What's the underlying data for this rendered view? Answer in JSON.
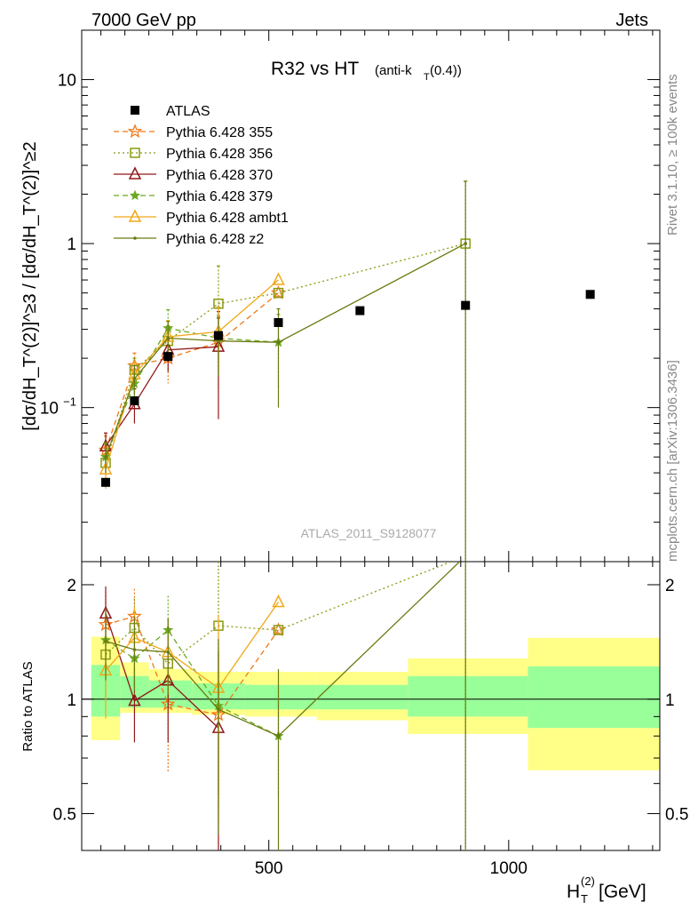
{
  "header": {
    "left": "7000 GeV pp",
    "right": "Jets"
  },
  "side_text": {
    "rivet": "Rivet 3.1.10, ≥ 100k events",
    "source": "mcplots.cern.ch [arXiv:1306.3436]"
  },
  "chart_data": {
    "type": "line",
    "title": "R32 vs HT",
    "title_suffix": "(anti-k",
    "title_suffix_sub": "T",
    "title_suffix_end": "(0.4))",
    "analysis_label": "ATLAS_2011_S9128077",
    "xlabel": "H",
    "xlabel_sub": "T",
    "xlabel_sup": "(2)",
    "xlabel_unit": " [GeV]",
    "ylabel": "[dσ/dH_T^(2)]^≥3 / [dσ/dH_T^(2)]^≥2",
    "ratio_ylabel": "Ratio to ATLAS",
    "x_range": [
      110,
      1315
    ],
    "y_range": [
      0.0115,
      20
    ],
    "y_scale": "log",
    "ratio_range": [
      0.4,
      2.3
    ],
    "ratio_scale": "log",
    "x_ticks": [
      {
        "v": 500,
        "label": "500"
      },
      {
        "v": 1000,
        "label": "1000"
      }
    ],
    "y_ticks": [
      {
        "v": 0.1,
        "label": "10",
        "sup": "−1"
      },
      {
        "v": 1,
        "label": "1",
        "sup": ""
      },
      {
        "v": 10,
        "label": "10",
        "sup": ""
      }
    ],
    "ratio_ticks": [
      {
        "v": 0.5,
        "label": "0.5"
      },
      {
        "v": 1,
        "label": "1"
      },
      {
        "v": 2,
        "label": "2"
      }
    ],
    "data": {
      "name": "ATLAS",
      "x": [
        160,
        220,
        290,
        395,
        520,
        690,
        910,
        1170
      ],
      "y": [
        0.035,
        0.11,
        0.205,
        0.275,
        0.33,
        0.39,
        0.42,
        0.49
      ]
    },
    "bands": [
      {
        "x0": 130,
        "x1": 190,
        "lo": 0.78,
        "hi": 1.46,
        "lo2": 0.9,
        "hi2": 1.23
      },
      {
        "x0": 190,
        "x1": 250,
        "lo": 0.92,
        "hi": 1.25,
        "lo2": 0.95,
        "hi2": 1.15
      },
      {
        "x0": 250,
        "x1": 340,
        "lo": 0.92,
        "hi": 1.2,
        "lo2": 0.95,
        "hi2": 1.12
      },
      {
        "x0": 340,
        "x1": 450,
        "lo": 0.91,
        "hi": 1.18,
        "lo2": 0.94,
        "hi2": 1.1
      },
      {
        "x0": 450,
        "x1": 600,
        "lo": 0.9,
        "hi": 1.18,
        "lo2": 0.94,
        "hi2": 1.09
      },
      {
        "x0": 600,
        "x1": 790,
        "lo": 0.88,
        "hi": 1.18,
        "lo2": 0.94,
        "hi2": 1.09
      },
      {
        "x0": 790,
        "x1": 1040,
        "lo": 0.81,
        "hi": 1.28,
        "lo2": 0.9,
        "hi2": 1.15
      },
      {
        "x0": 1040,
        "x1": 1315,
        "lo": 0.65,
        "hi": 1.45,
        "lo2": 0.84,
        "hi2": 1.22
      }
    ],
    "series": [
      {
        "name": "Pythia 6.428 355",
        "color": "#f07818",
        "dash": "6,4",
        "marker": "star-open",
        "x": [
          160,
          220,
          290,
          395,
          520
        ],
        "y": [
          0.055,
          0.18,
          0.2,
          0.25,
          0.5
        ],
        "err": [
          0.012,
          0.035,
          0.06,
          0.1,
          0.0
        ],
        "ratio": [
          1.57,
          1.65,
          0.97,
          0.91,
          1.52
        ],
        "rerr": [
          0.35,
          0.3,
          0.33,
          0.4,
          0.0
        ]
      },
      {
        "name": "Pythia 6.428 356",
        "color": "#8a9a10",
        "dash": "2,3",
        "marker": "square-open",
        "x": [
          160,
          220,
          290,
          395,
          520,
          910
        ],
        "y": [
          0.046,
          0.17,
          0.255,
          0.43,
          0.5,
          1.0
        ],
        "err": [
          0.01,
          0.03,
          0.06,
          0.3,
          0.0,
          1.4
        ],
        "ratio": [
          1.31,
          1.54,
          1.24,
          1.56,
          1.52,
          2.38
        ],
        "rerr": [
          0.3,
          0.3,
          0.3,
          1.0,
          0.0,
          2.0
        ]
      },
      {
        "name": "Pythia 6.428 370",
        "color": "#901818",
        "dash": "",
        "marker": "triangle-open",
        "x": [
          160,
          220,
          290,
          395
        ],
        "y": [
          0.058,
          0.105,
          0.225,
          0.235
        ],
        "err": [
          0.012,
          0.025,
          0.06,
          0.15
        ],
        "ratio": [
          1.68,
          0.99,
          1.12,
          0.84
        ],
        "rerr": [
          0.3,
          0.22,
          0.35,
          0.5
        ]
      },
      {
        "name": "Pythia 6.428 379",
        "color": "#6aa820",
        "dash": "6,4",
        "marker": "star",
        "x": [
          160,
          220,
          290,
          395,
          520
        ],
        "y": [
          0.05,
          0.14,
          0.305,
          0.265,
          0.25
        ],
        "err": [
          0.011,
          0.03,
          0.09,
          0.1,
          0.12
        ],
        "ratio": [
          1.43,
          1.28,
          1.52,
          0.96,
          0.8
        ],
        "rerr": [
          0.3,
          0.25,
          0.35,
          0.4,
          0.25
        ]
      },
      {
        "name": "Pythia 6.428 ambt1",
        "color": "#f0a818",
        "dash": "",
        "marker": "triangle-open",
        "x": [
          160,
          220,
          290,
          395,
          520
        ],
        "y": [
          0.042,
          0.16,
          0.27,
          0.29,
          0.6
        ],
        "err": [
          0.01,
          0.03,
          0.07,
          0.12,
          0.0
        ],
        "ratio": [
          1.19,
          1.45,
          1.33,
          1.07,
          1.8
        ],
        "rerr": [
          0.3,
          0.3,
          0.3,
          0.6,
          0.0
        ]
      },
      {
        "name": "Pythia 6.428 z2",
        "color": "#6a7a10",
        "dash": "",
        "marker": "dot",
        "x": [
          160,
          220,
          290,
          395,
          520,
          910
        ],
        "y": [
          0.05,
          0.15,
          0.265,
          0.255,
          0.25,
          1.0
        ],
        "err": [
          0.01,
          0.03,
          0.07,
          0.1,
          0.15,
          1.4
        ],
        "ratio": [
          1.42,
          1.35,
          1.33,
          0.94,
          0.8,
          2.38
        ],
        "rerr": [
          0.3,
          0.3,
          0.3,
          0.5,
          0.4,
          2.0
        ]
      }
    ]
  }
}
